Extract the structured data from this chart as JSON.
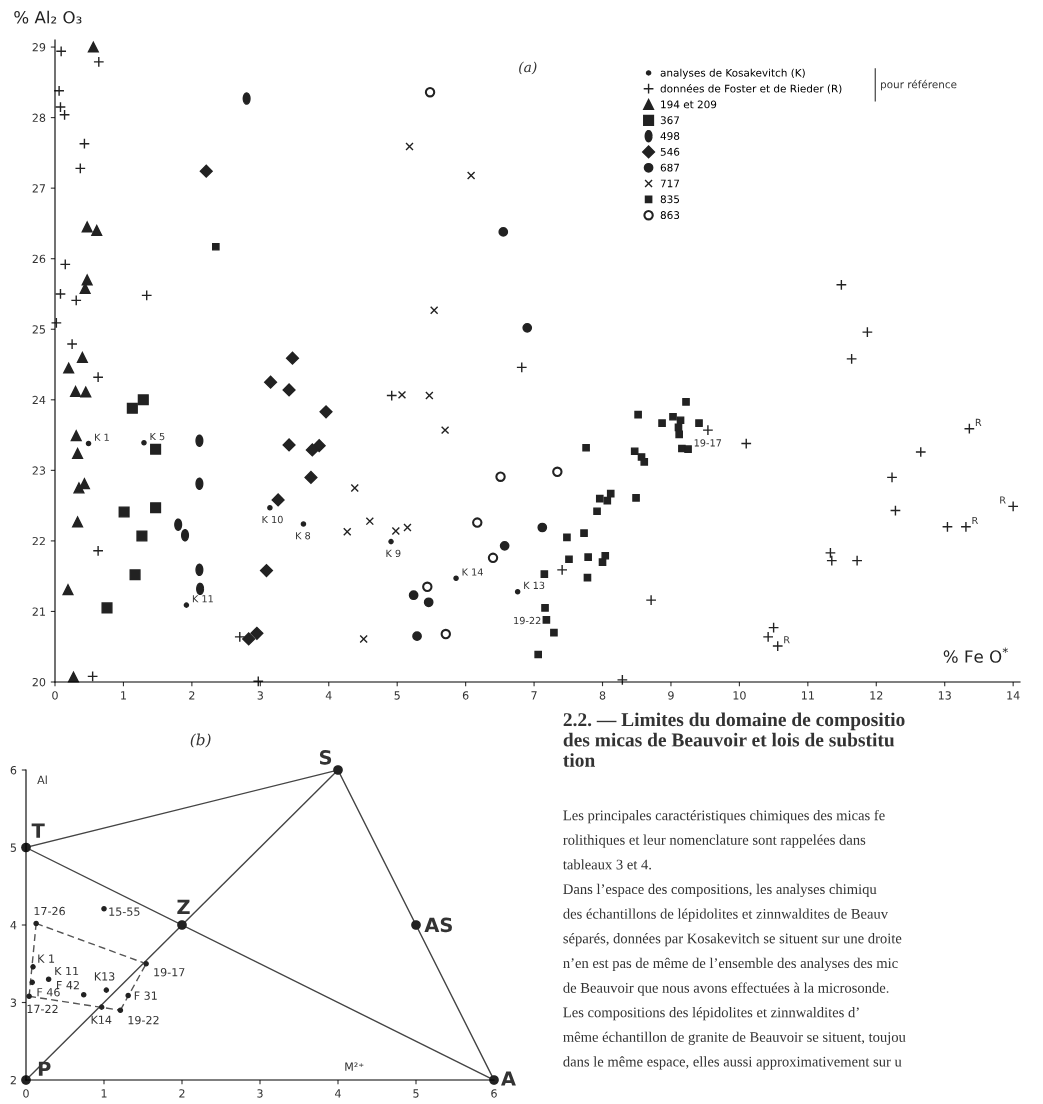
{
  "chart_data": [
    {
      "type": "scatter",
      "xlabel": "% Fe O$^{*}$",
      "ylabel": "% Al₂ O₃",
      "xlim": [
        0,
        14.1
      ],
      "xticks": [
        0,
        1,
        2,
        3,
        4,
        5,
        6,
        7,
        8,
        9,
        10,
        11,
        12,
        13,
        14
      ],
      "ylim": [
        20,
        29.1
      ],
      "yticks": [
        20,
        21,
        22,
        23,
        24,
        25,
        26,
        27,
        28,
        29
      ],
      "grid": false,
      "legend": "top right",
      "annotations": [
        "(a)",
        "pour référence",
        {
          "text": "K 1",
          "x": 0.49,
          "y": 23.38
        },
        {
          "text": "K 5",
          "x": 1.3,
          "y": 23.39
        },
        {
          "text": "K 11",
          "x": 1.92,
          "y": 21.09
        },
        {
          "text": "K 10",
          "x": 3.14,
          "y": 22.47
        },
        {
          "text": "K 8",
          "x": 3.63,
          "y": 22.24
        },
        {
          "text": "K 9",
          "x": 4.91,
          "y": 21.99
        },
        {
          "text": "K 14",
          "x": 5.86,
          "y": 21.47
        },
        {
          "text": "K 13",
          "x": 6.76,
          "y": 21.28
        },
        {
          "text": "19-17",
          "x": 9.25,
          "y": 23.3
        },
        {
          "text": "19-22",
          "x": 7.18,
          "y": 20.88
        },
        {
          "text": "R",
          "x": 13.36,
          "y": 23.59
        },
        {
          "text": "R",
          "x": 13.31,
          "y": 22.2
        },
        {
          "text": "R",
          "x": 14.0,
          "y": 22.49
        },
        {
          "text": "R",
          "x": 10.56,
          "y": 20.51
        }
      ],
      "series": [
        {
          "name": "analyses de Kosakevitch (K)",
          "color": "#222222",
          "marker": "circle",
          "x": [
            0.49,
            1.3,
            1.92,
            3.14,
            3.63,
            4.91,
            5.86,
            6.76
          ],
          "values": [
            23.38,
            23.39,
            21.09,
            22.47,
            22.24,
            21.99,
            21.47,
            21.28
          ]
        },
        {
          "name": "données de Foster et de Rieder (R)",
          "color": "#222222",
          "marker": "cross",
          "x": [
            0.09,
            0.64,
            0.06,
            0.08,
            0.14,
            0.43,
            0.37,
            0.15,
            0.08,
            0.31,
            1.34,
            0.02,
            0.25,
            0.63,
            0.63,
            0.55,
            2.7,
            2.97,
            4.92,
            6.82,
            7.41,
            8.71,
            8.29,
            9.54,
            10.1,
            11.49,
            11.87,
            11.64,
            13.36,
            12.65,
            12.23,
            12.28,
            13.04,
            13.31,
            14.0,
            11.33,
            11.35,
            11.72,
            10.5,
            10.42,
            10.56
          ],
          "values": [
            28.94,
            28.79,
            28.38,
            28.15,
            28.04,
            27.63,
            27.28,
            25.92,
            25.5,
            25.41,
            25.48,
            25.09,
            24.79,
            24.32,
            21.86,
            20.08,
            20.64,
            20.01,
            24.06,
            24.46,
            21.59,
            21.16,
            20.03,
            23.57,
            23.38,
            25.63,
            24.96,
            24.58,
            23.59,
            23.26,
            22.9,
            22.43,
            22.2,
            22.2,
            22.49,
            21.83,
            21.72,
            21.72,
            20.77,
            20.64,
            20.51
          ]
        },
        {
          "name": "194 et 209",
          "color": "#222222",
          "marker": "triangle",
          "x": [
            0.56,
            0.47,
            0.61,
            0.47,
            0.44,
            0.4,
            0.2,
            0.3,
            0.45,
            0.31,
            0.33,
            0.43,
            0.35,
            0.33,
            0.19,
            0.27
          ],
          "values": [
            29.0,
            26.45,
            26.4,
            25.7,
            25.58,
            24.6,
            24.45,
            24.12,
            24.11,
            23.49,
            23.24,
            22.81,
            22.75,
            22.27,
            21.31,
            20.07
          ]
        },
        {
          "name": "367",
          "color": "#222222",
          "marker": "square",
          "x": [
            1.13,
            1.29,
            1.47,
            1.01,
            1.47,
            1.27,
            1.17,
            0.76
          ],
          "values": [
            23.88,
            24.0,
            23.3,
            22.41,
            22.47,
            22.07,
            21.52,
            21.05
          ]
        },
        {
          "name": "498",
          "color": "#222222",
          "x": [
            2.8,
            2.11,
            2.11,
            1.8,
            1.9,
            2.11,
            2.12
          ],
          "values": [
            28.27,
            23.42,
            22.81,
            22.23,
            22.08,
            21.59,
            21.32
          ]
        },
        {
          "name": "546",
          "color": "#222222",
          "marker": "diamond",
          "x": [
            2.21,
            3.47,
            3.15,
            3.42,
            3.96,
            3.42,
            3.86,
            3.76,
            3.74,
            3.26,
            3.09,
            2.83,
            2.95
          ],
          "values": [
            27.24,
            24.59,
            24.25,
            24.14,
            23.83,
            23.36,
            23.35,
            23.29,
            22.9,
            22.58,
            21.58,
            20.61,
            20.69
          ]
        },
        {
          "name": "687",
          "color": "#222222",
          "marker": "circle",
          "x": [
            6.55,
            6.9,
            7.12,
            6.57,
            5.24,
            5.46,
            5.29
          ],
          "values": [
            26.38,
            25.02,
            22.19,
            21.93,
            21.23,
            21.13,
            20.65
          ]
        },
        {
          "name": "717",
          "color": "#222222",
          "marker": "cross",
          "x": [
            5.18,
            6.08,
            5.54,
            5.07,
            5.47,
            5.7,
            4.38,
            4.6,
            4.27,
            4.98,
            5.15,
            4.51
          ],
          "values": [
            27.59,
            27.18,
            25.27,
            24.07,
            24.06,
            23.57,
            22.75,
            22.28,
            22.13,
            22.14,
            22.19,
            20.61
          ]
        },
        {
          "name": "835",
          "color": "#222222",
          "marker": "square",
          "x": [
            2.35,
            7.76,
            8.52,
            8.47,
            8.57,
            8.61,
            8.87,
            9.03,
            9.11,
            9.12,
            9.14,
            9.22,
            9.41,
            9.16,
            9.25,
            8.49,
            8.12,
            7.96,
            8.07,
            7.92,
            7.73,
            7.48,
            7.51,
            7.79,
            8.04,
            8.0,
            7.78,
            7.15,
            7.16,
            7.18,
            7.29,
            7.06
          ],
          "values": [
            26.17,
            23.32,
            23.79,
            23.27,
            23.19,
            23.12,
            23.67,
            23.76,
            23.61,
            23.51,
            23.71,
            23.97,
            23.67,
            23.31,
            23.3,
            22.61,
            22.67,
            22.6,
            22.57,
            22.42,
            22.11,
            22.05,
            21.74,
            21.77,
            21.79,
            21.7,
            21.48,
            21.53,
            21.05,
            20.88,
            20.7,
            20.39
          ]
        },
        {
          "name": "863",
          "color": "#222222",
          "marker": "circle",
          "x": [
            5.48,
            6.51,
            7.34,
            6.17,
            6.4,
            5.44,
            5.71
          ],
          "values": [
            28.36,
            22.91,
            22.98,
            22.26,
            21.76,
            21.35,
            20.68
          ]
        }
      ]
    },
    {
      "type": "line",
      "xlabel": "M²⁺",
      "ylabel": "Al",
      "xlim": [
        0,
        6
      ],
      "xticks": [
        0,
        1,
        2,
        3,
        4,
        5,
        6
      ],
      "ylim": [
        2,
        6
      ],
      "yticks": [
        2,
        3,
        4,
        5,
        6
      ],
      "grid": false,
      "annotations": [
        "(b)",
        {
          "text": "P",
          "x": 0,
          "y": 2
        },
        {
          "text": "T",
          "x": 0,
          "y": 5
        },
        {
          "text": "S",
          "x": 4,
          "y": 6
        },
        {
          "text": "Z",
          "x": 2,
          "y": 4
        },
        {
          "text": "AS",
          "x": 5,
          "y": 4
        },
        {
          "text": "A",
          "x": 6,
          "y": 2
        },
        {
          "text": "17-26",
          "x": 0.13,
          "y": 4.02
        },
        {
          "text": "15-55",
          "x": 1.0,
          "y": 4.21
        },
        {
          "text": "19-17",
          "x": 1.54,
          "y": 3.5
        },
        {
          "text": "K 1",
          "x": 0.09,
          "y": 3.46
        },
        {
          "text": "K 11",
          "x": 0.29,
          "y": 3.3
        },
        {
          "text": "F 46",
          "x": 0.08,
          "y": 3.26
        },
        {
          "text": "F 42",
          "x": 0.74,
          "y": 3.1
        },
        {
          "text": "K13",
          "x": 1.03,
          "y": 3.16
        },
        {
          "text": "F 31",
          "x": 1.31,
          "y": 3.09
        },
        {
          "text": "17-22",
          "x": 0.04,
          "y": 3.08
        },
        {
          "text": "K14",
          "x": 0.97,
          "y": 2.94
        },
        {
          "text": "19-22",
          "x": 1.21,
          "y": 2.9
        }
      ],
      "series": [
        {
          "type": "line",
          "color": "#444444",
          "line_style": "solid",
          "x": [
            0,
            4
          ],
          "values": [
            5,
            6
          ]
        },
        {
          "type": "line",
          "color": "#444444",
          "line_style": "solid",
          "x": [
            4,
            6
          ],
          "values": [
            6,
            2
          ]
        },
        {
          "type": "line",
          "color": "#444444",
          "line_style": "solid",
          "x": [
            0,
            6
          ],
          "values": [
            5,
            2
          ]
        },
        {
          "type": "line",
          "color": "#444444",
          "line_style": "solid",
          "x": [
            0,
            4
          ],
          "values": [
            2,
            6
          ]
        },
        {
          "type": "line",
          "color": "#555555",
          "line_style": "dashed",
          "x": [
            0.13,
            1.54
          ],
          "values": [
            4.02,
            3.5
          ]
        },
        {
          "type": "line",
          "color": "#555555",
          "line_style": "dashed",
          "x": [
            1.21,
            1.54
          ],
          "values": [
            2.9,
            3.5
          ]
        },
        {
          "type": "line",
          "color": "#555555",
          "line_style": "dashed",
          "x": [
            0.04,
            1.21
          ],
          "values": [
            3.08,
            2.9
          ]
        },
        {
          "type": "line",
          "color": "#555555",
          "line_style": "dashed",
          "x": [
            0.04,
            0.13
          ],
          "values": [
            3.08,
            4.02
          ]
        },
        {
          "type": "scatter",
          "color": "#222222",
          "marker": "circle",
          "x": [
            0.13,
            1.0,
            1.54,
            0.09,
            0.29,
            0.08,
            0.74,
            1.03,
            1.31,
            0.04,
            0.97,
            1.21
          ],
          "values": [
            4.02,
            4.21,
            3.5,
            3.46,
            3.3,
            3.26,
            3.1,
            3.16,
            3.09,
            3.08,
            2.94,
            2.9
          ]
        },
        {
          "type": "scatter",
          "color": "#222222",
          "marker": "circle",
          "x": [
            0,
            0,
            4,
            2,
            5,
            6
          ],
          "values": [
            2,
            5,
            6,
            4,
            4,
            2
          ]
        }
      ]
    },
    {
      "type": "other",
      "title": "2.2. — Limites du domaine de compositio\ndes micas de Beauvoir et lois de substitu\ntion",
      "annotations": [
        "Les principales caractéristiques chimiques des micas fe",
        "rolithiques et leur nomenclature sont rappelées dans",
        "tableaux 3 et 4.",
        "Dans l’espace des compositions, les analyses chimiqu",
        "des échantillons de lépidolites et zinnwaldites de Beauv",
        "séparés, données par Kosakevitch se situent sur une droite",
        "n’en est pas de même de l’ensemble des analyses des mic",
        "de Beauvoir que nous avons effectuées à la microsonde.",
        "Les compositions des lépidolites et zinnwaldites d’",
        "même échantillon de granite de Beauvoir se situent, toujou",
        "dans le même espace, elles aussi approximativement sur u"
      ]
    }
  ]
}
